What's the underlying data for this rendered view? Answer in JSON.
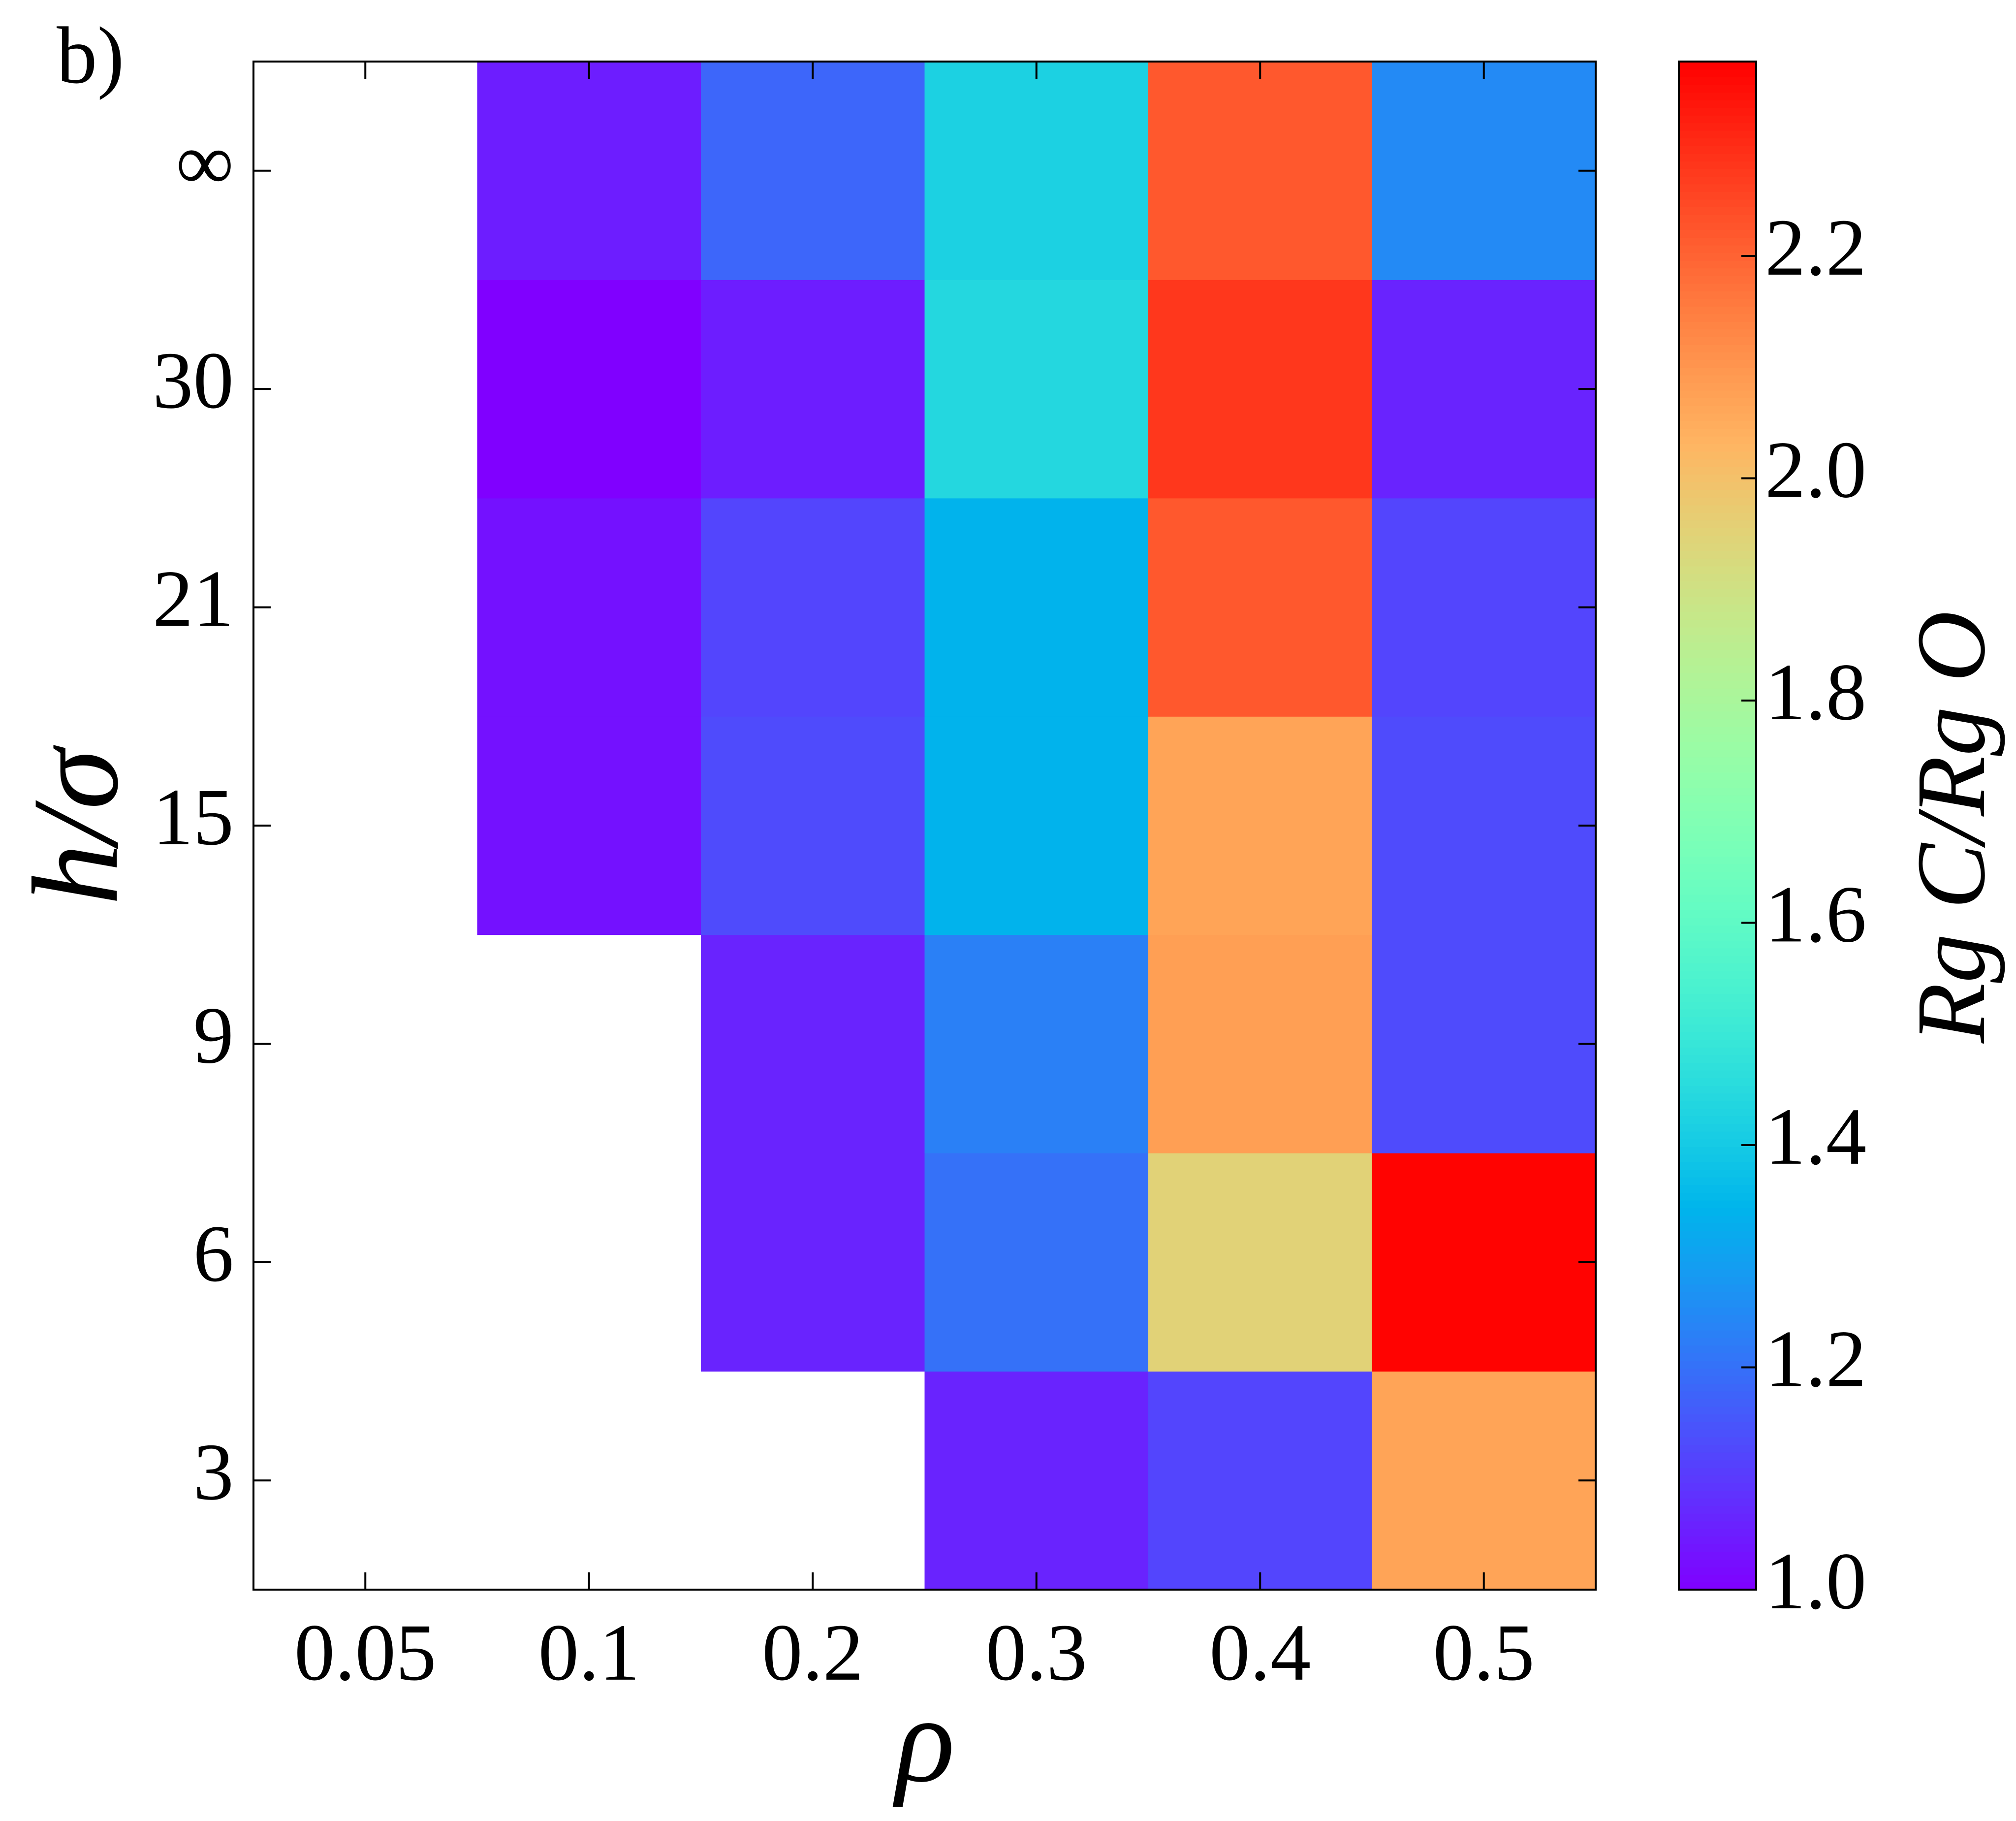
{
  "chart_data": {
    "type": "heatmap",
    "title": "b)",
    "x_label": "ρ",
    "y_label": "h/σ",
    "colorbar_label": "Rg C/Rg O",
    "x_categories": [
      "0.05",
      "0.1",
      "0.2",
      "0.3",
      "0.4",
      "0.5"
    ],
    "y_categories": [
      "3",
      "6",
      "9",
      "15",
      "21",
      "30",
      "∞"
    ],
    "values": [
      [
        null,
        null,
        null,
        1.06,
        1.12,
        2.07
      ],
      [
        null,
        null,
        1.06,
        1.2,
        1.95,
        2.37
      ],
      [
        null,
        null,
        1.06,
        1.23,
        2.08,
        1.13
      ],
      [
        null,
        1.03,
        1.13,
        1.34,
        2.07,
        1.13
      ],
      [
        null,
        1.03,
        1.12,
        1.34,
        2.22,
        1.12
      ],
      [
        null,
        1.0,
        1.05,
        1.44,
        2.28,
        1.06
      ],
      [
        null,
        1.05,
        1.18,
        1.42,
        2.22,
        1.25
      ]
    ],
    "colormap": "rainbow",
    "zlim": [
      1,
      2.375
    ],
    "zticks": [
      {
        "value": 1,
        "label": "1.0"
      },
      1.2,
      1.4,
      1.6,
      1.8,
      {
        "value": 2,
        "label": "2.0"
      },
      2.2
    ]
  }
}
